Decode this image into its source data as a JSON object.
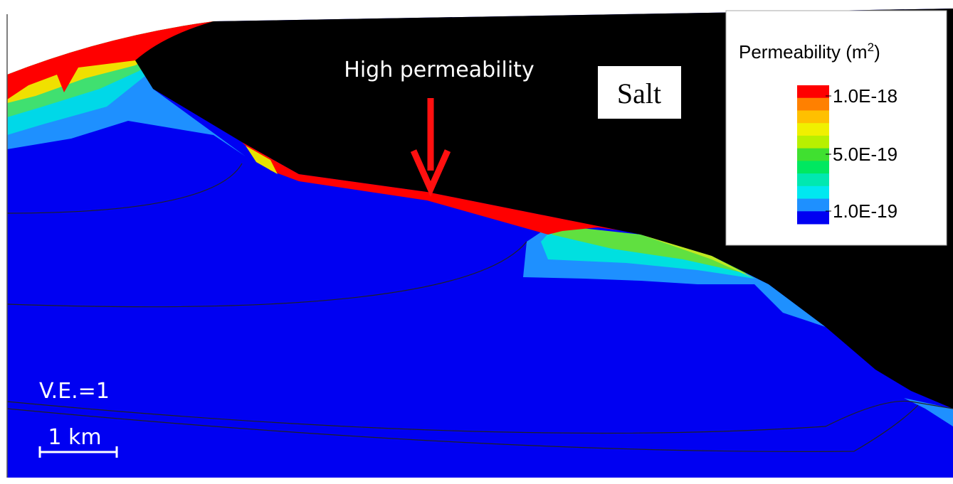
{
  "annotations": {
    "arrow_label": "High permeability",
    "salt_label": "Salt",
    "vertical_exaggeration": "V.E.=1",
    "scale_bar": "1 km"
  },
  "legend": {
    "title_main": "Permeability (m",
    "title_superscript": "2",
    "title_close": ")",
    "tick_labels": [
      "1.0E-18",
      "5.0E-19",
      "1.0E-19"
    ]
  }
}
